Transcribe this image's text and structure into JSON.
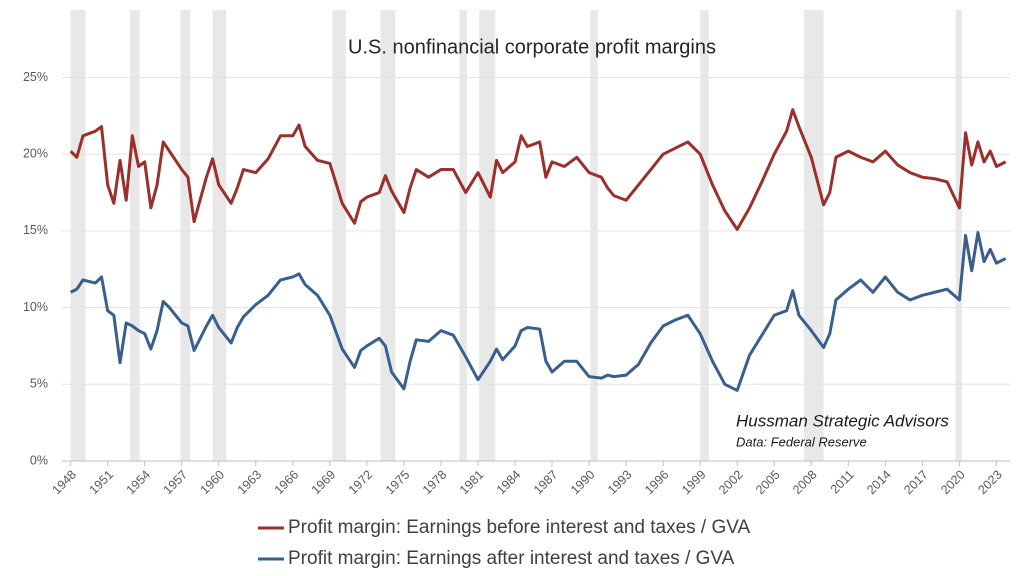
{
  "chart_data": {
    "type": "line",
    "title": "U.S. nonfinancial corporate profit margins",
    "annotations": [
      "Hussman Strategic Advisors",
      "Data: Federal Reserve"
    ],
    "x": [
      1948,
      1948.5,
      1949,
      1950,
      1950.5,
      1951,
      1951.5,
      1952,
      1952.5,
      1953,
      1953.5,
      1954,
      1954.5,
      1955,
      1955.5,
      1956,
      1957,
      1957.5,
      1958,
      1959,
      1959.5,
      1960,
      1961,
      1961.5,
      1962,
      1963,
      1964,
      1965,
      1966,
      1966.5,
      1967,
      1968,
      1969,
      1970,
      1971,
      1971.5,
      1972,
      1973,
      1973.5,
      1974,
      1975,
      1975.5,
      1976,
      1977,
      1978,
      1979,
      1980,
      1981,
      1982,
      1982.5,
      1983,
      1984,
      1984.5,
      1985,
      1986,
      1986.5,
      1987,
      1988,
      1989,
      1990,
      1991,
      1991.5,
      1992,
      1993,
      1994,
      1995,
      1996,
      1997,
      1998,
      1999,
      2000,
      2001,
      2002,
      2003,
      2004,
      2005,
      2006,
      2006.5,
      2007,
      2008,
      2009,
      2009.5,
      2010,
      2011,
      2012,
      2013,
      2014,
      2015,
      2016,
      2017,
      2018,
      2019,
      2020,
      2020.5,
      2021,
      2021.5,
      2022,
      2022.5,
      2023,
      2023.75
    ],
    "series": [
      {
        "name": "Profit margin: Earnings before interest and taxes / GVA",
        "color": "#9b2f2b",
        "values": [
          20.2,
          19.8,
          21.2,
          21.5,
          21.8,
          18,
          16.8,
          19.6,
          17,
          21.2,
          19.2,
          19.5,
          16.5,
          18,
          20.8,
          20.2,
          19,
          18.5,
          15.6,
          18.5,
          19.7,
          18,
          16.8,
          17.8,
          19,
          18.8,
          19.7,
          21.2,
          21.2,
          21.9,
          20.5,
          19.6,
          19.4,
          16.8,
          15.5,
          16.9,
          17.2,
          17.5,
          18.6,
          17.6,
          16.2,
          17.8,
          19,
          18.5,
          19,
          19,
          17.5,
          18.8,
          17.2,
          19.6,
          18.8,
          19.5,
          21.2,
          20.5,
          20.8,
          18.5,
          19.5,
          19.2,
          19.8,
          18.8,
          18.5,
          17.8,
          17.3,
          17,
          18,
          19,
          20,
          20.4,
          20.8,
          20,
          18,
          16.3,
          15.1,
          16.5,
          18.2,
          20,
          21.5,
          22.9,
          21.8,
          19.8,
          16.7,
          17.5,
          19.8,
          20.2,
          19.8,
          19.5,
          20.2,
          19.3,
          18.8,
          18.5,
          18.4,
          18.2,
          16.5,
          21.4,
          19.3,
          20.8,
          19.5,
          20.2,
          19.2,
          19.5
        ]
      },
      {
        "name": "Profit margin: Earnings after interest and taxes / GVA",
        "color": "#3a5f8f",
        "values": [
          11,
          11.2,
          11.8,
          11.6,
          12,
          9.8,
          9.5,
          6.4,
          9,
          8.8,
          8.5,
          8.3,
          7.3,
          8.5,
          10.4,
          10,
          9,
          8.8,
          7.2,
          8.8,
          9.5,
          8.7,
          7.7,
          8.7,
          9.4,
          10.2,
          10.8,
          11.8,
          12,
          12.2,
          11.5,
          10.8,
          9.5,
          7.3,
          6.1,
          7.2,
          7.5,
          8,
          7.5,
          5.8,
          4.7,
          6.5,
          7.9,
          7.8,
          8.5,
          8.2,
          6.8,
          5.3,
          6.5,
          7.3,
          6.6,
          7.5,
          8.5,
          8.7,
          8.6,
          6.5,
          5.8,
          6.5,
          6.5,
          5.5,
          5.4,
          5.6,
          5.5,
          5.6,
          6.3,
          7.7,
          8.8,
          9.2,
          9.5,
          8.3,
          6.5,
          5,
          4.6,
          6.9,
          8.2,
          9.5,
          9.8,
          11.1,
          9.5,
          8.5,
          7.4,
          8.3,
          10.5,
          11.2,
          11.8,
          11,
          12,
          11,
          10.5,
          10.8,
          11,
          11.2,
          10.5,
          14.7,
          12.4,
          14.9,
          13,
          13.8,
          12.9,
          13.2
        ]
      }
    ],
    "shaded_periods": [
      [
        1948.0,
        1949.2
      ],
      [
        1952.8,
        1953.6
      ],
      [
        1956.9,
        1957.7
      ],
      [
        1959.5,
        1960.6
      ],
      [
        1969.2,
        1970.3
      ],
      [
        1973.1,
        1974.3
      ],
      [
        1979.5,
        1980.1
      ],
      [
        1981.1,
        1982.4
      ],
      [
        1990.1,
        1990.7
      ],
      [
        1999.0,
        1999.7
      ],
      [
        2007.4,
        2009.0
      ],
      [
        2019.7,
        2020.2
      ]
    ],
    "shade_color": "#e8e8e8",
    "xlim": [
      1947.3,
      2024.1
    ],
    "xticks": [
      1948,
      1951,
      1954,
      1957,
      1960,
      1963,
      1966,
      1969,
      1972,
      1975,
      1978,
      1981,
      1984,
      1987,
      1990,
      1993,
      1996,
      1999,
      2002,
      2005,
      2008,
      2011,
      2014,
      2017,
      2020,
      2023
    ],
    "ylim": [
      0,
      29.4
    ],
    "yticks": [
      {
        "value": 0,
        "label": "0%"
      },
      {
        "value": 5,
        "label": "5%"
      },
      {
        "value": 10,
        "label": "10%"
      },
      {
        "value": 15,
        "label": "15%"
      },
      {
        "value": 20,
        "label": "20%"
      },
      {
        "value": 25,
        "label": "25%"
      }
    ],
    "grid": true,
    "legend": "bottom"
  }
}
